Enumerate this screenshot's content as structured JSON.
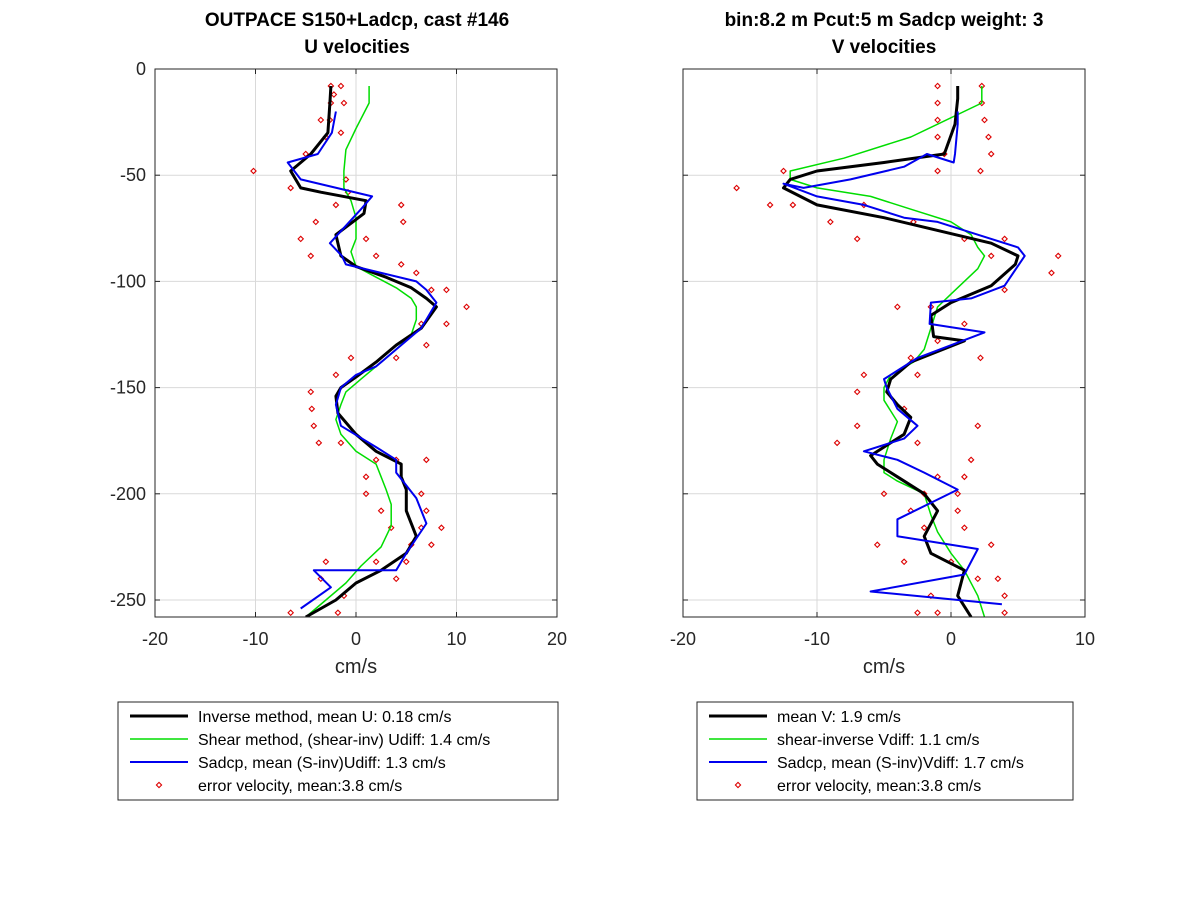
{
  "figure": {
    "left_title_line1": "OUTPACE S150+Ladcp, cast #146",
    "left_title_line2": "U velocities",
    "right_title_line1": "bin:8.2 m  Pcut:5 m  Sadcp weight: 3",
    "right_title_line2": "V velocities"
  },
  "colors": {
    "inverse": "#000000",
    "shear": "#00dd00",
    "sadcp": "#0000ee",
    "error": "#dd0000",
    "grid": "#d9d9d9",
    "axis": "#262626"
  },
  "chart_data": [
    {
      "type": "line",
      "title": "OUTPACE S150+Ladcp, cast #146 / U velocities",
      "xlabel": "cm/s",
      "ylabel": "",
      "xlim": [
        -20,
        20
      ],
      "ylim": [
        -258,
        0
      ],
      "xticks": [
        -20,
        -10,
        0,
        10,
        20
      ],
      "yticks": [
        0,
        -50,
        -100,
        -150,
        -200,
        -250
      ],
      "grid": true,
      "legend": {
        "placement": "below",
        "entries": [
          {
            "label": "Inverse method, mean U:  0.18 cm/s",
            "series": "inverse"
          },
          {
            "label": "Shear method, (shear-inv)  Udiff:  1.4 cm/s",
            "series": "shear"
          },
          {
            "label": "Sadcp, mean (S-inv)Udiff: 1.3 cm/s",
            "series": "sadcp"
          },
          {
            "label": "error velocity, mean:3.8 cm/s",
            "series": "error"
          }
        ]
      },
      "series": [
        {
          "key": "inverse",
          "name": "Inverse method",
          "color": "#000000",
          "width": 3,
          "x": [
            -2.5,
            -2.6,
            -2.8,
            -4.5,
            -6.5,
            -5.5,
            -3.5,
            1,
            0.8,
            -2,
            -1.5,
            0,
            3,
            5.5,
            7,
            8,
            6.5,
            4,
            2,
            0,
            -1.5,
            -2,
            -1.8,
            0,
            2,
            4.5,
            4.5,
            5,
            5,
            6,
            5,
            2.5,
            0,
            -2,
            -5
          ],
          "y": [
            -8,
            -16,
            -30,
            -40,
            -48,
            -56,
            -58,
            -62,
            -68,
            -78,
            -88,
            -93,
            -98,
            -103,
            -108,
            -112,
            -122,
            -130,
            -138,
            -145,
            -150,
            -154,
            -162,
            -172,
            -180,
            -186,
            -192,
            -198,
            -208,
            -220,
            -228,
            -236,
            -242,
            -250,
            -258
          ]
        },
        {
          "key": "shear",
          "name": "Shear method",
          "color": "#00dd00",
          "width": 1.5,
          "x": [
            1.3,
            1.3,
            0,
            -1,
            -1.2,
            -1.2,
            -0.5,
            0,
            0,
            -0.5,
            0,
            2,
            4,
            5.5,
            6,
            6,
            5.5,
            4,
            2,
            0.5,
            -1,
            -1.5,
            -2,
            -1.5,
            0,
            2,
            2.5,
            3,
            3.5,
            3.5,
            2.5,
            0.5,
            -1,
            -3,
            -5
          ],
          "y": [
            -8,
            -16,
            -28,
            -38,
            -48,
            -56,
            -62,
            -70,
            -80,
            -86,
            -93,
            -98,
            -103,
            -108,
            -112,
            -118,
            -125,
            -132,
            -140,
            -146,
            -152,
            -158,
            -165,
            -172,
            -180,
            -186,
            -192,
            -198,
            -205,
            -215,
            -225,
            -234,
            -242,
            -250,
            -258
          ]
        },
        {
          "key": "sadcp",
          "name": "Sadcp",
          "color": "#0000ee",
          "width": 2,
          "x": [
            -2,
            -2.4,
            -3.8,
            -6.8,
            -5.5,
            1.6,
            0.5,
            -2.6,
            -1.4,
            -1,
            2.5,
            6,
            7,
            8,
            6.5,
            4,
            2,
            0,
            -1.5,
            -2,
            -1.5,
            2,
            4,
            4,
            6,
            7,
            5,
            4,
            -4.2,
            -2.5,
            -5.5
          ],
          "y": [
            -20,
            -30,
            -40,
            -44,
            -52,
            -60,
            -66,
            -82,
            -88,
            -92,
            -96,
            -100,
            -104,
            -110,
            -122,
            -132,
            -140,
            -144,
            -150,
            -158,
            -168,
            -178,
            -184,
            -190,
            -202,
            -214,
            -228,
            -236,
            -236,
            -244,
            -254
          ]
        }
      ],
      "error_points": {
        "key": "error",
        "name": "error velocity",
        "color": "#dd0000",
        "x": [
          -2.5,
          -2.2,
          -1.5,
          -1.2,
          -2.5,
          -2.6,
          -3.5,
          -1.5,
          -3,
          -5,
          -10.2,
          -6.5,
          -1,
          -0.8,
          4.5,
          -2,
          4.7,
          -4,
          1,
          -5.5,
          2,
          -4.5,
          4.5,
          6,
          7.5,
          9,
          11,
          9,
          6.5,
          7,
          -0.5,
          4,
          -2,
          -4.5,
          -4.4,
          -4.2,
          -3.7,
          -1.5,
          2,
          4,
          1,
          7,
          1,
          6.5,
          2.5,
          7,
          3.5,
          6.5,
          8.5,
          7.5,
          5.5,
          2,
          5,
          -3,
          4,
          -3.5,
          -1.2,
          -6.5,
          -1.8
        ],
        "y": [
          -8,
          -12,
          -8,
          -16,
          -16,
          -24,
          -24,
          -30,
          -32,
          -40,
          -48,
          -56,
          -52,
          -58,
          -64,
          -64,
          -72,
          -72,
          -80,
          -80,
          -88,
          -88,
          -92,
          -96,
          -104,
          -104,
          -112,
          -120,
          -120,
          -130,
          -136,
          -136,
          -144,
          -152,
          -160,
          -168,
          -176,
          -176,
          -184,
          -184,
          -192,
          -184,
          -200,
          -200,
          -208,
          -208,
          -216,
          -216,
          -216,
          -224,
          -224,
          -232,
          -232,
          -232,
          -240,
          -240,
          -248,
          -256,
          -256
        ]
      }
    },
    {
      "type": "line",
      "title": "bin:8.2 m  Pcut:5 m  Sadcp weight: 3 / V velocities",
      "xlabel": "cm/s",
      "ylabel": "",
      "xlim": [
        -20,
        10
      ],
      "ylim": [
        -258,
        0
      ],
      "xticks": [
        -20,
        -10,
        0,
        10
      ],
      "yticks": [
        0,
        -50,
        -100,
        -150,
        -200,
        -250
      ],
      "grid": true,
      "legend": {
        "placement": "below",
        "entries": [
          {
            "label": "mean V:  1.9 cm/s",
            "series": "inverse"
          },
          {
            "label": "shear-inverse Vdiff:  1.1 cm/s",
            "series": "shear"
          },
          {
            "label": "Sadcp, mean (S-inv)Vdiff: 1.7 cm/s",
            "series": "sadcp"
          },
          {
            "label": "error velocity, mean:3.8 cm/s",
            "series": "error"
          }
        ]
      },
      "series": [
        {
          "key": "inverse",
          "name": "mean V",
          "color": "#000000",
          "width": 3,
          "x": [
            0.5,
            0.5,
            0.3,
            -0.5,
            -5,
            -10,
            -12,
            -12.5,
            -10,
            -5,
            -1,
            3,
            5,
            4.8,
            3,
            0,
            -1.5,
            -1.3,
            1,
            -3,
            -4.5,
            -4.8,
            -4,
            -3,
            -3.5,
            -6,
            -5.5,
            -4,
            -2,
            -1,
            -2,
            -1.5,
            1,
            0.5,
            1.5
          ],
          "y": [
            -8,
            -14,
            -26,
            -40,
            -44,
            -48,
            -52,
            -56,
            -64,
            -70,
            -76,
            -82,
            -88,
            -92,
            -102,
            -110,
            -116,
            -126,
            -128,
            -138,
            -146,
            -152,
            -158,
            -164,
            -172,
            -182,
            -186,
            -192,
            -200,
            -208,
            -220,
            -228,
            -236,
            -248,
            -258
          ]
        },
        {
          "key": "shear",
          "name": "shear-inverse",
          "color": "#00dd00",
          "width": 1.5,
          "x": [
            2.3,
            2.3,
            2.3,
            -3,
            -8,
            -12,
            -12,
            -10,
            -6,
            -3,
            0,
            1.5,
            2,
            2.5,
            2,
            0,
            -1,
            -1.5,
            -2,
            -2.8,
            -4.5,
            -5,
            -5,
            -4,
            -4.5,
            -5,
            -5,
            -4,
            -2,
            -1.5,
            -1,
            0,
            1,
            2,
            2.5
          ],
          "y": [
            -8,
            -12,
            -16,
            -32,
            -42,
            -48,
            -52,
            -56,
            -60,
            -66,
            -72,
            -78,
            -84,
            -88,
            -94,
            -106,
            -112,
            -122,
            -132,
            -138,
            -144,
            -150,
            -156,
            -166,
            -174,
            -184,
            -190,
            -194,
            -200,
            -210,
            -218,
            -228,
            -236,
            -248,
            -258
          ]
        },
        {
          "key": "sadcp",
          "name": "Sadcp",
          "color": "#0000ee",
          "width": 2,
          "x": [
            0.5,
            0.5,
            0.3,
            0.2,
            -1.8,
            -3.5,
            -7.5,
            -11,
            -12.5,
            -10,
            -6.5,
            -3.5,
            -1,
            2,
            5,
            5.5,
            4,
            1.5,
            -1.5,
            -1.6,
            2.5,
            -2.5,
            -5,
            -4.8,
            -4,
            -2.5,
            -3.5,
            -6.5,
            -4,
            -2,
            0.5,
            -4,
            -4,
            2,
            1,
            -6,
            3.8
          ],
          "y": [
            -20,
            -26,
            -40,
            -44,
            -40,
            -46,
            -52,
            -56,
            -54,
            -60,
            -64,
            -70,
            -72,
            -78,
            -84,
            -88,
            -102,
            -108,
            -110,
            -120,
            -124,
            -136,
            -146,
            -150,
            -160,
            -168,
            -174,
            -180,
            -184,
            -190,
            -198,
            -212,
            -220,
            -226,
            -238,
            -246,
            -252
          ]
        }
      ],
      "error_points": {
        "key": "error",
        "name": "error velocity",
        "color": "#dd0000",
        "x": [
          -1,
          2.3,
          -1,
          2.3,
          -1,
          2.5,
          -1,
          2.8,
          -0.5,
          3,
          -1,
          2.2,
          -12.5,
          -16,
          -13.5,
          -11.8,
          -6.5,
          -9,
          -2.8,
          -7,
          1,
          4,
          8,
          3,
          7.5,
          4,
          -4,
          -1.5,
          1,
          -1,
          2.2,
          -3,
          -6.5,
          -2.5,
          -7,
          -3.5,
          -7,
          2,
          -8.5,
          -2.5,
          1.5,
          -1,
          1,
          -2,
          0.5,
          -5,
          -3,
          0.5,
          -2,
          1,
          -5.5,
          3,
          0,
          -3.5,
          2,
          3.5,
          -1.5,
          4,
          -2.5,
          -1,
          4
        ],
        "y": [
          -8,
          -8,
          -16,
          -16,
          -24,
          -24,
          -32,
          -32,
          -40,
          -40,
          -48,
          -48,
          -48,
          -56,
          -64,
          -64,
          -64,
          -72,
          -72,
          -80,
          -80,
          -80,
          -88,
          -88,
          -96,
          -104,
          -112,
          -112,
          -120,
          -128,
          -136,
          -136,
          -144,
          -144,
          -152,
          -160,
          -168,
          -168,
          -176,
          -176,
          -184,
          -192,
          -192,
          -200,
          -200,
          -200,
          -208,
          -208,
          -216,
          -216,
          -224,
          -224,
          -232,
          -232,
          -240,
          -240,
          -248,
          -248,
          -256,
          -256,
          -256
        ]
      }
    }
  ]
}
